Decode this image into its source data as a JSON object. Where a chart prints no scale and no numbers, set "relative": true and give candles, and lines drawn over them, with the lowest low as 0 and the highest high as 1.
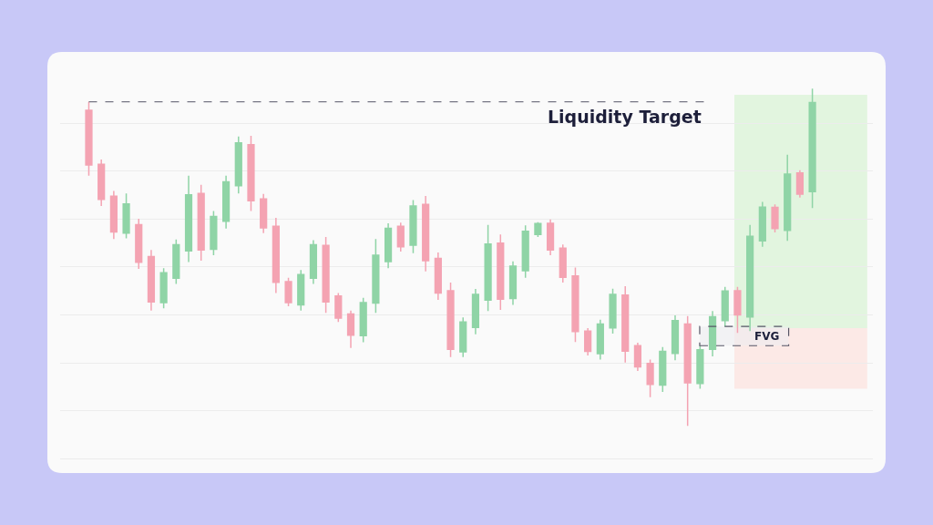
{
  "chart_data": {
    "type": "candlestick",
    "relative": true,
    "grid": "y",
    "categories": [
      null,
      null,
      null,
      null,
      null,
      null,
      null,
      null,
      null,
      null,
      null,
      null,
      null,
      null,
      null,
      null,
      null,
      null,
      null,
      null,
      null,
      null,
      null,
      null,
      null,
      null,
      null,
      null,
      null,
      null,
      null,
      null,
      null,
      null,
      null,
      null,
      null,
      null,
      null,
      null,
      null,
      null,
      null,
      null,
      null,
      null,
      null,
      null,
      null,
      null,
      null,
      null,
      null,
      null,
      null,
      null,
      null,
      null,
      null
    ],
    "ohlc": [
      [
        0.936,
        0.961,
        0.742,
        0.774
      ],
      [
        0.776,
        0.79,
        0.652,
        0.672
      ],
      [
        0.681,
        0.697,
        0.554,
        0.575
      ],
      [
        0.572,
        0.689,
        0.556,
        0.658
      ],
      [
        0.597,
        0.614,
        0.466,
        0.485
      ],
      [
        0.502,
        0.522,
        0.342,
        0.368
      ],
      [
        0.366,
        0.468,
        0.349,
        0.454
      ],
      [
        0.438,
        0.553,
        0.421,
        0.537
      ],
      [
        0.519,
        0.742,
        0.486,
        0.685
      ],
      [
        0.689,
        0.715,
        0.49,
        0.522
      ],
      [
        0.524,
        0.637,
        0.506,
        0.621
      ],
      [
        0.607,
        0.742,
        0.585,
        0.724
      ],
      [
        0.712,
        0.858,
        0.689,
        0.839
      ],
      [
        0.834,
        0.86,
        0.637,
        0.668
      ],
      [
        0.673,
        0.688,
        0.572,
        0.587
      ],
      [
        0.592,
        0.617,
        0.394,
        0.426
      ],
      [
        0.428,
        0.439,
        0.355,
        0.366
      ],
      [
        0.359,
        0.462,
        0.342,
        0.449
      ],
      [
        0.438,
        0.551,
        0.421,
        0.537
      ],
      [
        0.535,
        0.56,
        0.335,
        0.368
      ],
      [
        0.385,
        0.394,
        0.308,
        0.32
      ],
      [
        0.332,
        0.342,
        0.231,
        0.269
      ],
      [
        0.268,
        0.38,
        0.248,
        0.366
      ],
      [
        0.364,
        0.554,
        0.335,
        0.506
      ],
      [
        0.487,
        0.601,
        0.468,
        0.586
      ],
      [
        0.592,
        0.603,
        0.517,
        0.531
      ],
      [
        0.536,
        0.67,
        0.512,
        0.652
      ],
      [
        0.657,
        0.682,
        0.458,
        0.49
      ],
      [
        0.497,
        0.514,
        0.374,
        0.394
      ],
      [
        0.401,
        0.425,
        0.204,
        0.227
      ],
      [
        0.22,
        0.322,
        0.204,
        0.308
      ],
      [
        0.292,
        0.406,
        0.272,
        0.39
      ],
      [
        0.373,
        0.596,
        0.341,
        0.539
      ],
      [
        0.542,
        0.568,
        0.344,
        0.376
      ],
      [
        0.378,
        0.488,
        0.359,
        0.474
      ],
      [
        0.46,
        0.595,
        0.439,
        0.577
      ],
      [
        0.568,
        0.604,
        0.56,
        0.6
      ],
      [
        0.601,
        0.612,
        0.506,
        0.522
      ],
      [
        0.527,
        0.538,
        0.425,
        0.441
      ],
      [
        0.445,
        0.47,
        0.249,
        0.28
      ],
      [
        0.281,
        0.29,
        0.209,
        0.221
      ],
      [
        0.214,
        0.315,
        0.197,
        0.302
      ],
      [
        0.291,
        0.407,
        0.274,
        0.39
      ],
      [
        0.388,
        0.414,
        0.188,
        0.222
      ],
      [
        0.238,
        0.247,
        0.163,
        0.175
      ],
      [
        0.185,
        0.197,
        0.085,
        0.123
      ],
      [
        0.121,
        0.234,
        0.101,
        0.221
      ],
      [
        0.215,
        0.328,
        0.195,
        0.312
      ],
      [
        0.302,
        0.326,
        0,
        0.128
      ],
      [
        0.126,
        0.238,
        0.11,
        0.226
      ],
      [
        0.227,
        0.341,
        0.206,
        0.324
      ],
      [
        0.312,
        0.412,
        0.295,
        0.4
      ],
      [
        0.401,
        0.412,
        0.276,
        0.329
      ],
      [
        0.323,
        0.596,
        0.281,
        0.562
      ],
      [
        0.549,
        0.664,
        0.531,
        0.649
      ],
      [
        0.648,
        0.657,
        0.574,
        0.585
      ],
      [
        0.58,
        0.804,
        0.549,
        0.747
      ],
      [
        0.75,
        0.758,
        0.677,
        0.687
      ],
      [
        0.695,
        1,
        0.646,
        0.959
      ]
    ],
    "colors": [
      "#f4a3b2",
      "#f4a3b2",
      "#f4a3b2",
      "#8fd4a6",
      "#f4a3b2",
      "#f4a3b2",
      "#8fd4a6",
      "#8fd4a6",
      "#8fd4a6",
      "#f4a3b2",
      "#8fd4a6",
      "#8fd4a6",
      "#8fd4a6",
      "#f4a3b2",
      "#f4a3b2",
      "#f4a3b2",
      "#f4a3b2",
      "#8fd4a6",
      "#8fd4a6",
      "#f4a3b2",
      "#f4a3b2",
      "#f4a3b2",
      "#8fd4a6",
      "#8fd4a6",
      "#8fd4a6",
      "#f4a3b2",
      "#8fd4a6",
      "#f4a3b2",
      "#f4a3b2",
      "#f4a3b2",
      "#8fd4a6",
      "#8fd4a6",
      "#8fd4a6",
      "#f4a3b2",
      "#8fd4a6",
      "#8fd4a6",
      "#8fd4a6",
      "#f4a3b2",
      "#f4a3b2",
      "#f4a3b2",
      "#f4a3b2",
      "#8fd4a6",
      "#8fd4a6",
      "#f4a3b2",
      "#f4a3b2",
      "#f4a3b2",
      "#8fd4a6",
      "#8fd4a6",
      "#f4a3b2",
      "#8fd4a6",
      "#8fd4a6",
      "#8fd4a6",
      "#f4a3b2",
      "#8fd4a6",
      "#8fd4a6",
      "#f4a3b2",
      "#8fd4a6",
      "#f4a3b2",
      "#8fd4a6"
    ],
    "ref_lines": [
      {
        "axis": "y",
        "value": 0.961,
        "label": "Liquidity Target",
        "color": "#555566",
        "line_style": "dashed"
      }
    ],
    "bands": [
      {
        "axis": "y",
        "from": 0.29,
        "to": 0.982,
        "color": "#e2f5df"
      },
      {
        "axis": "y",
        "from": 0.11,
        "to": 0.29,
        "color": "#fce9e6"
      },
      {
        "axis": "y",
        "from": 0.238,
        "to": 0.295,
        "label": "FVG",
        "color": "#ececf0"
      }
    ]
  }
}
